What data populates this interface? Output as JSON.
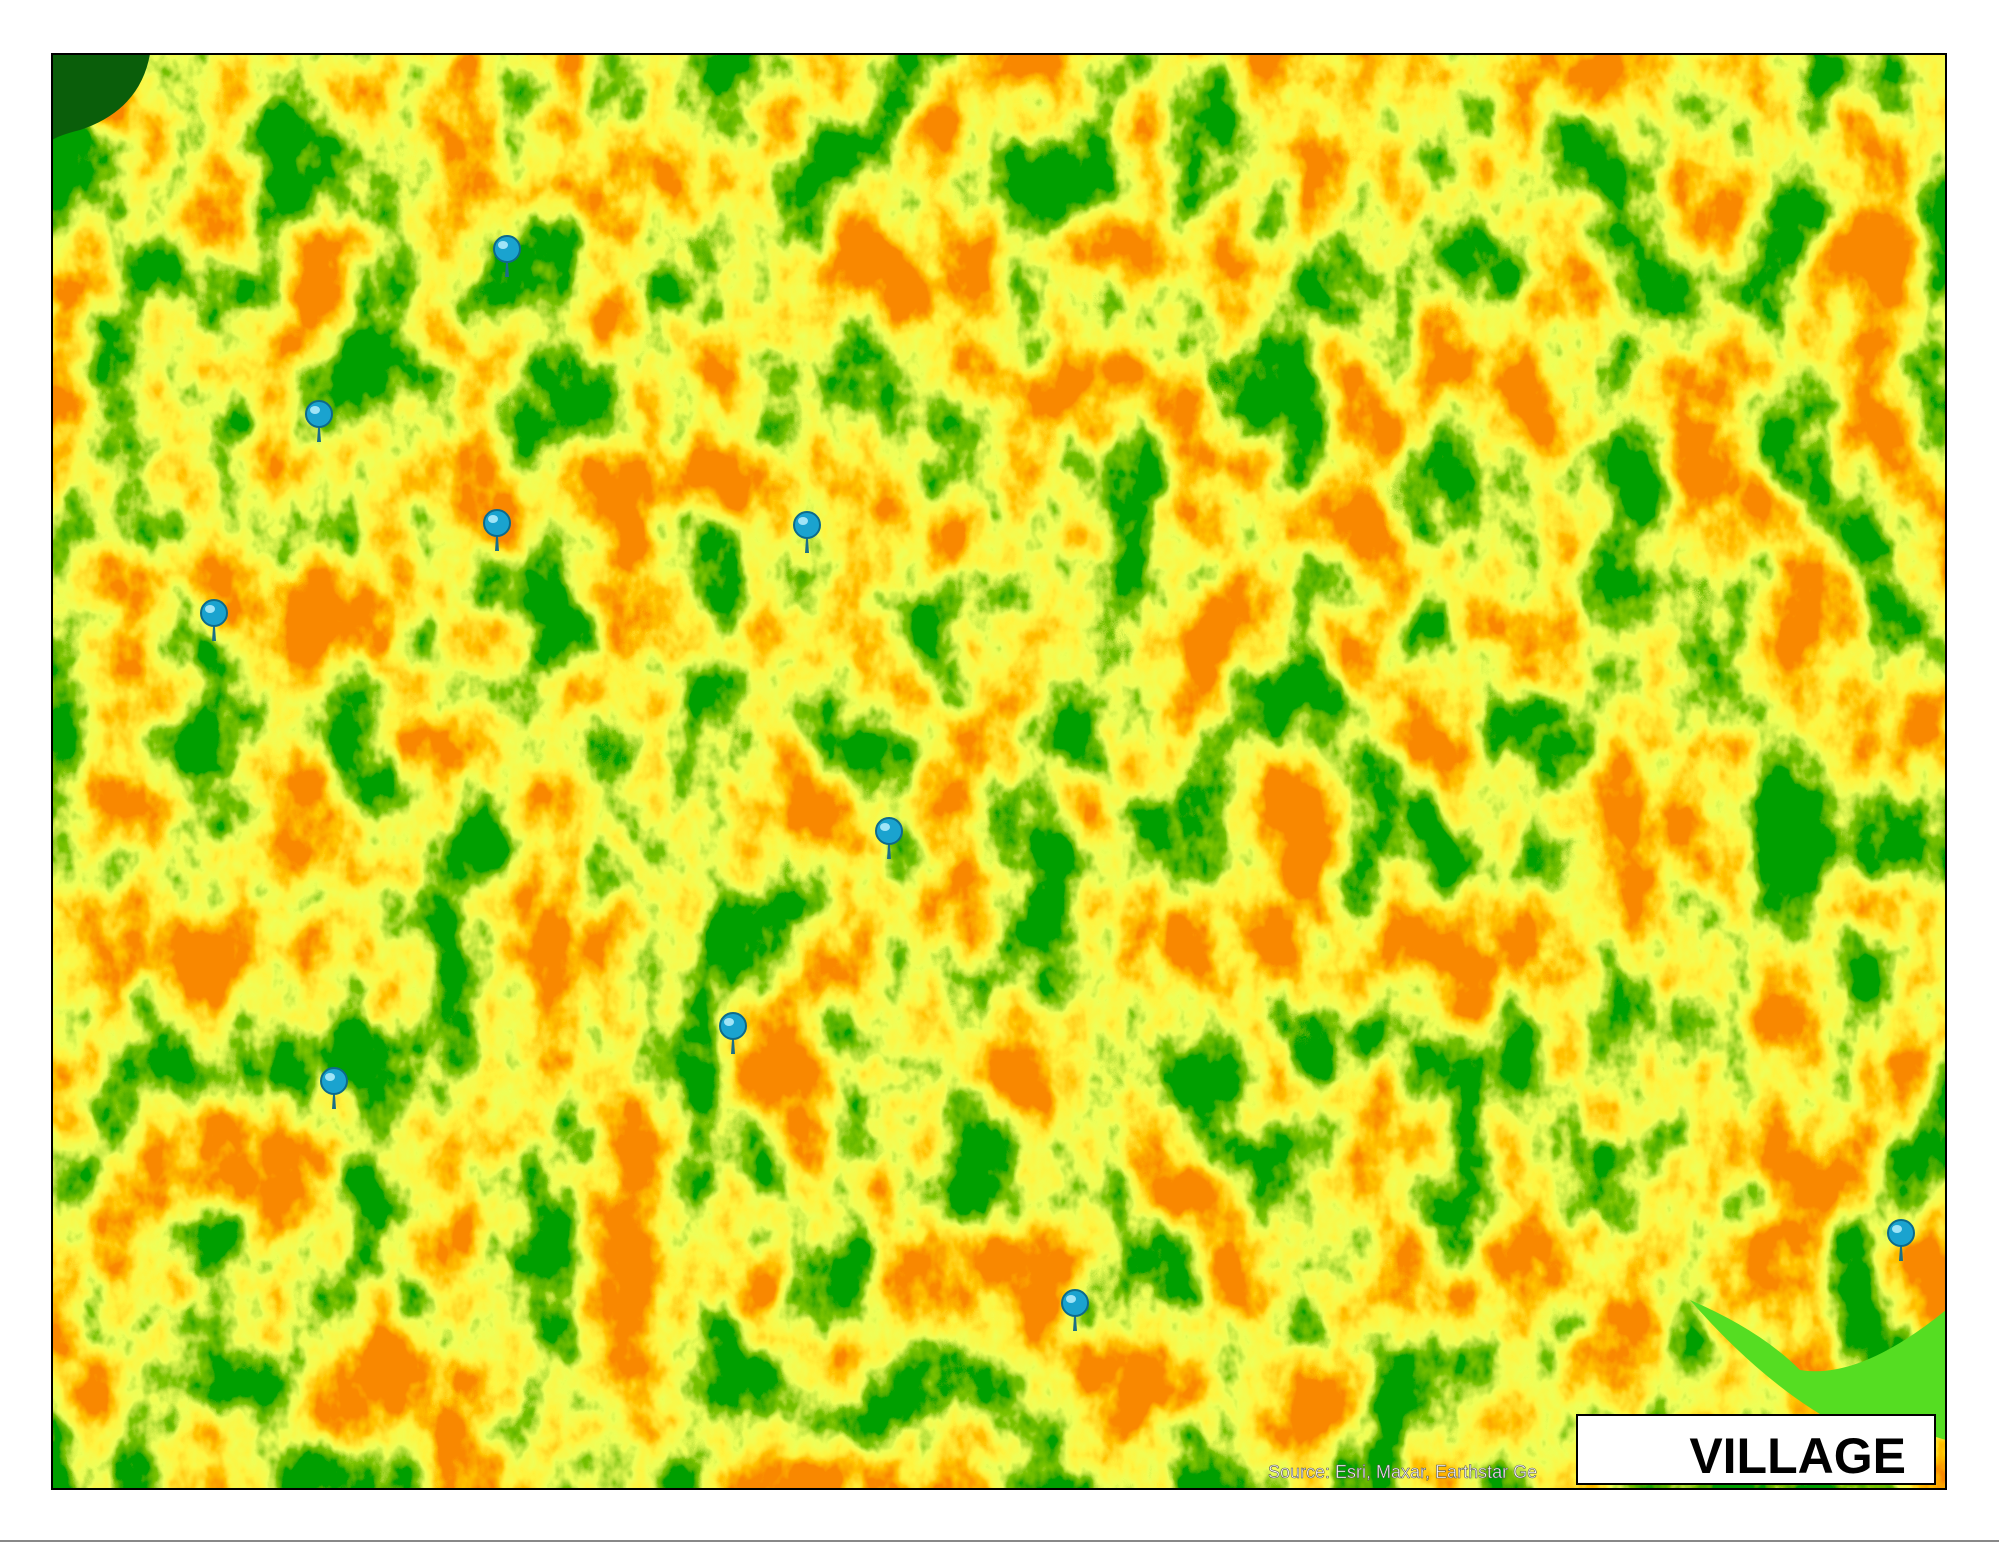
{
  "map": {
    "attribution": "Source: Esri, Maxar, Earthstar Ge",
    "legend": {
      "label": "VILLAGE"
    }
  }
}
